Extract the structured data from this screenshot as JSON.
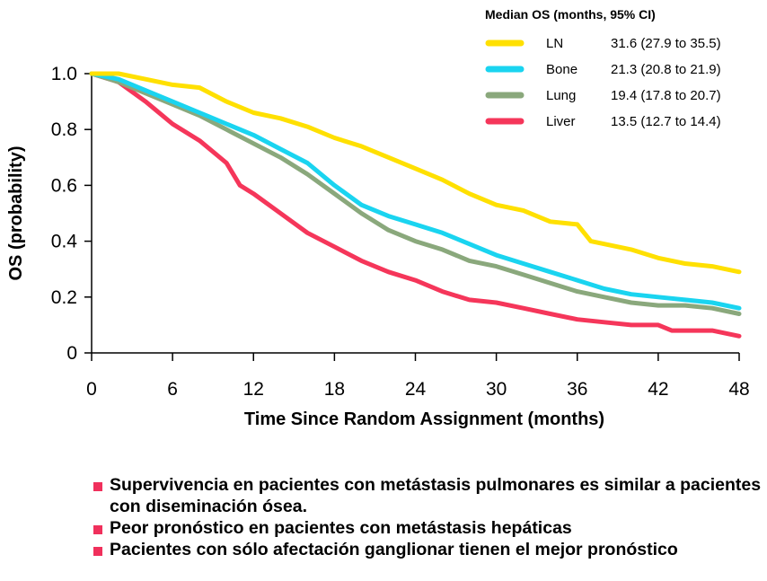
{
  "chart_data": {
    "type": "line",
    "xlabel": "Time Since Random Assignment (months)",
    "ylabel": "OS (probability)",
    "xlim": [
      0,
      48
    ],
    "ylim": [
      0,
      1.0
    ],
    "x_ticks": [
      0,
      6,
      12,
      18,
      24,
      30,
      36,
      42,
      48
    ],
    "y_ticks": [
      0,
      0.2,
      0.4,
      0.6,
      0.8,
      1.0
    ],
    "y_tick_labels": [
      "0",
      "0.2",
      "0.4",
      "0.6",
      "0.8",
      "1.0"
    ],
    "legend": {
      "title": "Median OS (months, 95% CI)",
      "position": "top-right"
    },
    "series": [
      {
        "name": "LN",
        "median_label": "31.6 (27.9 to 35.5)",
        "color": "#ffe000",
        "x": [
          0,
          2,
          4,
          6,
          8,
          10,
          12,
          14,
          16,
          18,
          20,
          22,
          24,
          26,
          28,
          30,
          32,
          34,
          36,
          37,
          38,
          40,
          42,
          44,
          46,
          48
        ],
        "y": [
          1.0,
          1.0,
          0.98,
          0.96,
          0.95,
          0.9,
          0.86,
          0.84,
          0.81,
          0.77,
          0.74,
          0.7,
          0.66,
          0.62,
          0.57,
          0.53,
          0.51,
          0.47,
          0.46,
          0.4,
          0.39,
          0.37,
          0.34,
          0.32,
          0.31,
          0.29
        ]
      },
      {
        "name": "Bone",
        "median_label": "21.3 (20.8 to 21.9)",
        "color": "#1ad4f0",
        "x": [
          0,
          2,
          4,
          6,
          8,
          10,
          12,
          14,
          16,
          18,
          20,
          22,
          24,
          26,
          28,
          30,
          32,
          34,
          36,
          38,
          40,
          42,
          44,
          46,
          48
        ],
        "y": [
          1.0,
          0.98,
          0.94,
          0.9,
          0.86,
          0.82,
          0.78,
          0.73,
          0.68,
          0.6,
          0.53,
          0.49,
          0.46,
          0.43,
          0.39,
          0.35,
          0.32,
          0.29,
          0.26,
          0.23,
          0.21,
          0.2,
          0.19,
          0.18,
          0.16
        ]
      },
      {
        "name": "Lung",
        "median_label": "19.4 (17.8 to 20.7)",
        "color": "#8aa87c",
        "x": [
          0,
          2,
          4,
          6,
          8,
          10,
          12,
          14,
          16,
          18,
          20,
          22,
          24,
          26,
          28,
          30,
          32,
          34,
          36,
          38,
          40,
          42,
          44,
          46,
          48
        ],
        "y": [
          1.0,
          0.97,
          0.93,
          0.89,
          0.85,
          0.8,
          0.75,
          0.7,
          0.64,
          0.57,
          0.5,
          0.44,
          0.4,
          0.37,
          0.33,
          0.31,
          0.28,
          0.25,
          0.22,
          0.2,
          0.18,
          0.17,
          0.17,
          0.16,
          0.14
        ]
      },
      {
        "name": "Liver",
        "median_label": "13.5 (12.7 to 14.4)",
        "color": "#f5365a",
        "x": [
          0,
          2,
          4,
          6,
          8,
          10,
          11,
          12,
          14,
          16,
          18,
          20,
          22,
          24,
          26,
          28,
          30,
          32,
          34,
          36,
          38,
          40,
          42,
          43,
          44,
          46,
          48
        ],
        "y": [
          1.0,
          0.97,
          0.9,
          0.82,
          0.76,
          0.68,
          0.6,
          0.57,
          0.5,
          0.43,
          0.38,
          0.33,
          0.29,
          0.26,
          0.22,
          0.19,
          0.18,
          0.16,
          0.14,
          0.12,
          0.11,
          0.1,
          0.1,
          0.08,
          0.08,
          0.08,
          0.06
        ]
      }
    ]
  },
  "bullets": {
    "color": "#f0305c",
    "items": [
      "Supervivencia en pacientes con metástasis pulmonares es similar a pacientes con diseminación ósea.",
      "Peor pronóstico en pacientes con metástasis hepáticas",
      "Pacientes con sólo afectación ganglionar tienen el mejor pronóstico"
    ]
  }
}
